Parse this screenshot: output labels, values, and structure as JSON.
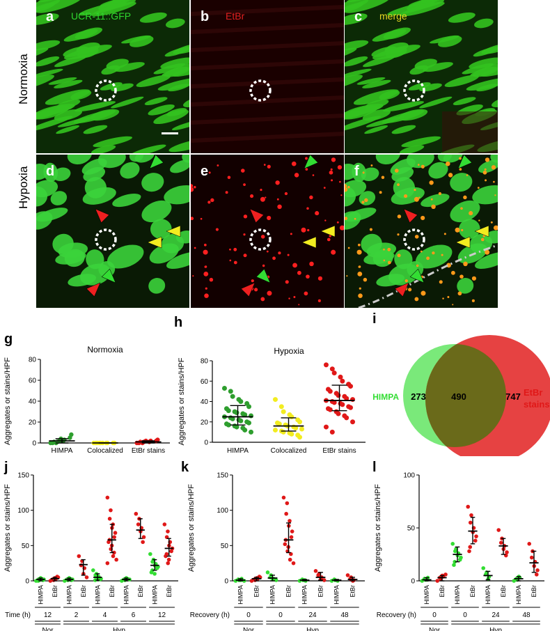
{
  "figure": {
    "row_labels": {
      "top": "Normoxia",
      "bottom": "Hypoxia"
    },
    "panels": [
      {
        "letter": "a",
        "caption": "UCR-11::GFP",
        "caption_color": "#2fd62f",
        "tint": "green"
      },
      {
        "letter": "b",
        "caption": "EtBr",
        "caption_color": "#e02020",
        "tint": "red"
      },
      {
        "letter": "c",
        "caption": "merge",
        "caption_color": "#e8d820",
        "tint": "merge"
      },
      {
        "letter": "d",
        "caption": "",
        "caption_color": "",
        "tint": "green"
      },
      {
        "letter": "e",
        "caption": "",
        "caption_color": "",
        "tint": "red"
      },
      {
        "letter": "f",
        "caption": "",
        "caption_color": "",
        "tint": "merge"
      }
    ],
    "charts_letters": {
      "g": "g",
      "h": "h",
      "i": "i",
      "j": "j",
      "k": "k",
      "l": "l"
    },
    "colors": {
      "green": "#2e9e2e",
      "yellow": "#f2ec20",
      "red": "#e01818",
      "lightgreen": "#33dd33"
    }
  },
  "chart_data": [
    {
      "id": "g",
      "type": "scatter",
      "title": "Normoxia",
      "ylabel": "Aggregates or stains/HPF",
      "ylim": [
        0,
        80
      ],
      "yticks": [
        0,
        20,
        40,
        60,
        80
      ],
      "categories": [
        "HIMPA",
        "Colocalized",
        "EtBr stains"
      ],
      "series": [
        {
          "category": "HIMPA",
          "color": "#2e9e2e",
          "mean": 2,
          "err": [
            0,
            4
          ],
          "points": [
            0,
            0,
            1,
            2,
            3,
            5,
            8,
            0,
            1,
            2,
            4
          ]
        },
        {
          "category": "Colocalized",
          "color": "#f2ec20",
          "mean": 0,
          "err": [
            0,
            0
          ],
          "points": [
            0,
            0,
            0,
            0,
            0,
            0,
            0,
            0,
            0,
            0
          ]
        },
        {
          "category": "EtBr stains",
          "color": "#e01818",
          "mean": 1,
          "err": [
            0,
            2
          ],
          "points": [
            0,
            0,
            1,
            1,
            2,
            2,
            3,
            0,
            1,
            2
          ]
        }
      ]
    },
    {
      "id": "h",
      "type": "scatter",
      "title": "Hypoxia",
      "ylabel": "Aggregates or stains/HPF",
      "ylim": [
        0,
        80
      ],
      "yticks": [
        0,
        20,
        40,
        60,
        80
      ],
      "categories": [
        "HIMPA",
        "Colocalized",
        "EtBr stains"
      ],
      "series": [
        {
          "category": "HIMPA",
          "color": "#2e9e2e",
          "mean": 25,
          "err": [
            17,
            36
          ],
          "points": [
            53,
            50,
            45,
            42,
            40,
            38,
            35,
            33,
            31,
            30,
            29,
            28,
            27,
            26,
            25,
            24,
            23,
            22,
            21,
            20,
            19,
            18,
            17,
            16,
            15,
            14,
            12,
            10
          ]
        },
        {
          "category": "Colocalized",
          "color": "#f2ec20",
          "mean": 16,
          "err": [
            11,
            24
          ],
          "points": [
            42,
            35,
            30,
            27,
            25,
            22,
            20,
            19,
            18,
            17,
            16,
            15,
            14,
            13,
            12,
            11,
            10,
            9,
            8,
            7,
            5
          ]
        },
        {
          "category": "EtBr stains",
          "color": "#e01818",
          "mean": 41,
          "err": [
            31,
            56
          ],
          "points": [
            76,
            72,
            68,
            64,
            60,
            57,
            55,
            52,
            50,
            48,
            46,
            45,
            43,
            42,
            41,
            40,
            39,
            38,
            37,
            35,
            34,
            33,
            32,
            30,
            28,
            26,
            24,
            20,
            15,
            10
          ]
        }
      ]
    },
    {
      "id": "i",
      "type": "venn",
      "sets": [
        {
          "name": "HIMPA",
          "only": 273,
          "color": "#33dd33"
        },
        {
          "name": "EtBr stains",
          "only": 747,
          "color": "#e01818"
        }
      ],
      "intersection": 490,
      "label_left": "HIMPA",
      "label_right_1": "EtBr",
      "label_right_2": "stains"
    },
    {
      "id": "j",
      "type": "scatter",
      "ylabel": "Aggregates or stains/HPF",
      "ylim": [
        0,
        150
      ],
      "yticks": [
        0,
        50,
        100,
        150
      ],
      "categories": [
        "HIMPA",
        "EtBr",
        "HIMPA",
        "EtBr",
        "HIMPA",
        "EtBr",
        "HIMPA",
        "EtBr",
        "HIMPA",
        "EtBr"
      ],
      "time_label": "Time (h)",
      "times": [
        "12",
        "2",
        "4",
        "6",
        "12"
      ],
      "groups": [
        {
          "label": "Nor",
          "from": 0,
          "to": 1
        },
        {
          "label": "Hyp",
          "from": 2,
          "to": 9
        }
      ],
      "series": [
        {
          "color": "#33dd33",
          "mean": 2,
          "err": [
            0,
            4
          ],
          "points": [
            0,
            1,
            2,
            3,
            4,
            2,
            1,
            0
          ]
        },
        {
          "color": "#e01818",
          "mean": 3,
          "err": [
            0,
            5
          ],
          "points": [
            0,
            1,
            2,
            3,
            4,
            5,
            6,
            2
          ]
        },
        {
          "color": "#33dd33",
          "mean": 2,
          "err": [
            0,
            4
          ],
          "points": [
            0,
            1,
            2,
            3,
            4,
            2,
            1
          ]
        },
        {
          "color": "#e01818",
          "mean": 23,
          "err": [
            8,
            30
          ],
          "points": [
            35,
            28,
            22,
            18,
            10,
            5
          ]
        },
        {
          "color": "#33dd33",
          "mean": 5,
          "err": [
            1,
            10
          ],
          "points": [
            15,
            10,
            8,
            6,
            4,
            3,
            2,
            1
          ]
        },
        {
          "color": "#e01818",
          "mean": 58,
          "err": [
            40,
            80
          ],
          "points": [
            118,
            100,
            88,
            80,
            75,
            68,
            62,
            58,
            55,
            50,
            45,
            40,
            35,
            30,
            25
          ]
        },
        {
          "color": "#33dd33",
          "mean": 2,
          "err": [
            0,
            4
          ],
          "points": [
            0,
            1,
            2,
            3,
            4,
            2
          ]
        },
        {
          "color": "#e01818",
          "mean": 72,
          "err": [
            60,
            88
          ],
          "points": [
            95,
            88,
            80,
            75,
            70,
            62,
            55
          ]
        },
        {
          "color": "#33dd33",
          "mean": 22,
          "err": [
            15,
            30
          ],
          "points": [
            38,
            30,
            27,
            24,
            22,
            20,
            18,
            15,
            12,
            10
          ]
        },
        {
          "color": "#e01818",
          "mean": 46,
          "err": [
            35,
            60
          ],
          "points": [
            80,
            70,
            62,
            55,
            50,
            46,
            42,
            38,
            35,
            30,
            25
          ]
        }
      ]
    },
    {
      "id": "k",
      "type": "scatter",
      "ylabel": "Aggregates or stains/HPF",
      "ylim": [
        0,
        150
      ],
      "yticks": [
        0,
        50,
        100,
        150
      ],
      "categories": [
        "HIMPA",
        "EtBr",
        "HIMPA",
        "EtBr",
        "HIMPA",
        "EtBr",
        "HIMPA",
        "EtBr"
      ],
      "time_label": "Recovery (h)",
      "times": [
        "0",
        "0",
        "24",
        "48"
      ],
      "groups": [
        {
          "label": "Nor",
          "from": 0,
          "to": 1
        },
        {
          "label": "Hyp",
          "from": 2,
          "to": 7
        }
      ],
      "series": [
        {
          "color": "#33dd33",
          "mean": 1,
          "err": [
            0,
            3
          ],
          "points": [
            0,
            1,
            2,
            3,
            1,
            0
          ]
        },
        {
          "color": "#e01818",
          "mean": 3,
          "err": [
            0,
            5
          ],
          "points": [
            0,
            1,
            2,
            3,
            4,
            5,
            6
          ]
        },
        {
          "color": "#33dd33",
          "mean": 4,
          "err": [
            0,
            8
          ],
          "points": [
            12,
            8,
            5,
            3,
            2,
            1
          ]
        },
        {
          "color": "#e01818",
          "mean": 58,
          "err": [
            40,
            82
          ],
          "points": [
            118,
            110,
            95,
            85,
            78,
            70,
            62,
            58,
            52,
            48,
            42,
            38,
            30,
            25
          ]
        },
        {
          "color": "#33dd33",
          "mean": 1,
          "err": [
            0,
            2
          ],
          "points": [
            0,
            1,
            2,
            0,
            1
          ]
        },
        {
          "color": "#e01818",
          "mean": 5,
          "err": [
            1,
            12
          ],
          "points": [
            14,
            10,
            8,
            5,
            3,
            1
          ]
        },
        {
          "color": "#33dd33",
          "mean": 1,
          "err": [
            0,
            2
          ],
          "points": [
            0,
            1,
            2,
            0
          ]
        },
        {
          "color": "#e01818",
          "mean": 2,
          "err": [
            0,
            5
          ],
          "points": [
            8,
            5,
            3,
            1,
            0
          ]
        }
      ]
    },
    {
      "id": "l",
      "type": "scatter",
      "ylabel": "Aggregates or stains/HPF",
      "ylim": [
        0,
        100
      ],
      "yticks": [
        0,
        50,
        100
      ],
      "categories": [
        "HIMPA",
        "EtBr",
        "HIMPA",
        "EtBr",
        "HIMPA",
        "EtBr",
        "HIMPA",
        "EtBr"
      ],
      "time_label": "Recovery (h)",
      "times": [
        "0",
        "0",
        "24",
        "48"
      ],
      "groups": [
        {
          "label": "Nor",
          "from": 0,
          "to": 1
        },
        {
          "label": "Hyp",
          "from": 2,
          "to": 7
        }
      ],
      "series": [
        {
          "color": "#33dd33",
          "mean": 1,
          "err": [
            0,
            3
          ],
          "points": [
            0,
            1,
            2,
            3,
            1
          ]
        },
        {
          "color": "#e01818",
          "mean": 3,
          "err": [
            0,
            5
          ],
          "points": [
            0,
            2,
            3,
            4,
            5,
            6
          ]
        },
        {
          "color": "#33dd33",
          "mean": 25,
          "err": [
            18,
            32
          ],
          "points": [
            35,
            30,
            28,
            26,
            24,
            22,
            20,
            18,
            15
          ]
        },
        {
          "color": "#e01818",
          "mean": 47,
          "err": [
            35,
            60
          ],
          "points": [
            70,
            62,
            55,
            50,
            46,
            42,
            38,
            32,
            28
          ]
        },
        {
          "color": "#33dd33",
          "mean": 5,
          "err": [
            1,
            9
          ],
          "points": [
            12,
            8,
            6,
            4,
            2
          ]
        },
        {
          "color": "#e01818",
          "mean": 33,
          "err": [
            25,
            40
          ],
          "points": [
            48,
            40,
            36,
            33,
            30,
            27,
            24
          ]
        },
        {
          "color": "#33dd33",
          "mean": 2,
          "err": [
            0,
            4
          ],
          "points": [
            0,
            1,
            2,
            3,
            4
          ]
        },
        {
          "color": "#e01818",
          "mean": 17,
          "err": [
            8,
            28
          ],
          "points": [
            35,
            28,
            22,
            18,
            14,
            10,
            6
          ]
        }
      ]
    }
  ]
}
